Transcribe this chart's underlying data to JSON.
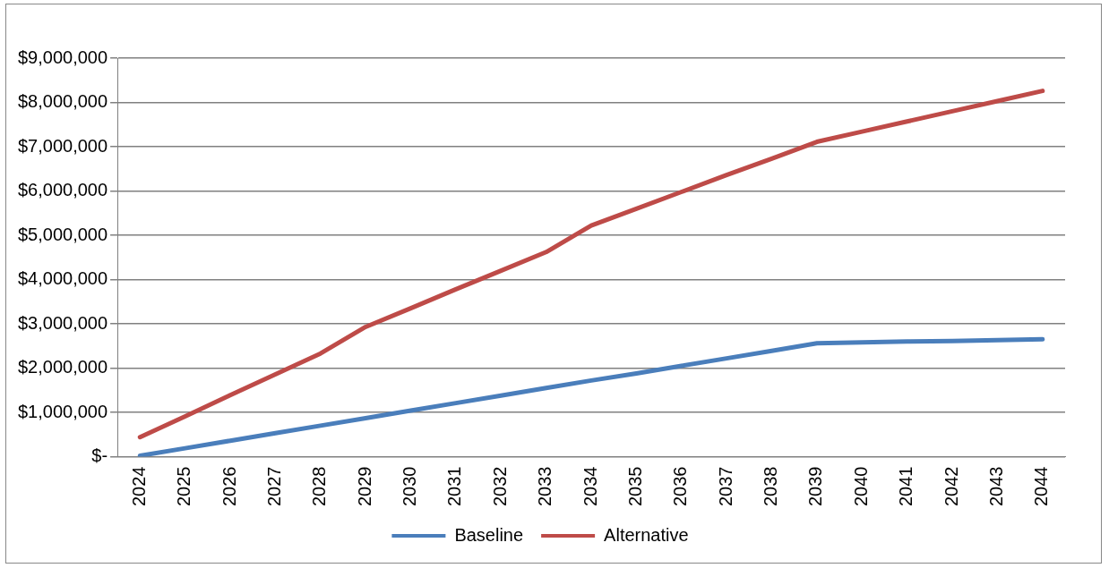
{
  "chart_data": {
    "type": "line",
    "categories": [
      "2024",
      "2025",
      "2026",
      "2027",
      "2028",
      "2029",
      "2030",
      "2031",
      "2032",
      "2033",
      "2034",
      "2035",
      "2036",
      "2037",
      "2038",
      "2039",
      "2040",
      "2041",
      "2042",
      "2043",
      "2044"
    ],
    "series": [
      {
        "name": "Baseline",
        "color": "#4a7ebb",
        "values": [
          20000,
          190000,
          360000,
          530000,
          700000,
          870000,
          1040000,
          1210000,
          1380000,
          1550000,
          1720000,
          1880000,
          2050000,
          2220000,
          2390000,
          2560000,
          2580000,
          2600000,
          2610000,
          2630000,
          2650000
        ]
      },
      {
        "name": "Alternative",
        "color": "#be4b48",
        "values": [
          440000,
          910000,
          1390000,
          1860000,
          2330000,
          2930000,
          3350000,
          3780000,
          4200000,
          4620000,
          5220000,
          5600000,
          5980000,
          6360000,
          6730000,
          7110000,
          7340000,
          7570000,
          7800000,
          8030000,
          8260000
        ]
      }
    ],
    "ylim": [
      0,
      9000000
    ],
    "yticks": [
      {
        "value": 0,
        "label": "$-"
      },
      {
        "value": 1000000,
        "label": "$1,000,000"
      },
      {
        "value": 2000000,
        "label": "$2,000,000"
      },
      {
        "value": 3000000,
        "label": "$3,000,000"
      },
      {
        "value": 4000000,
        "label": "$4,000,000"
      },
      {
        "value": 5000000,
        "label": "$5,000,000"
      },
      {
        "value": 6000000,
        "label": "$6,000,000"
      },
      {
        "value": 7000000,
        "label": "$7,000,000"
      },
      {
        "value": 8000000,
        "label": "$8,000,000"
      },
      {
        "value": 9000000,
        "label": "$9,000,000"
      }
    ],
    "grid": "y",
    "legend": "bottom",
    "marker": "none",
    "line_style": "solid"
  }
}
